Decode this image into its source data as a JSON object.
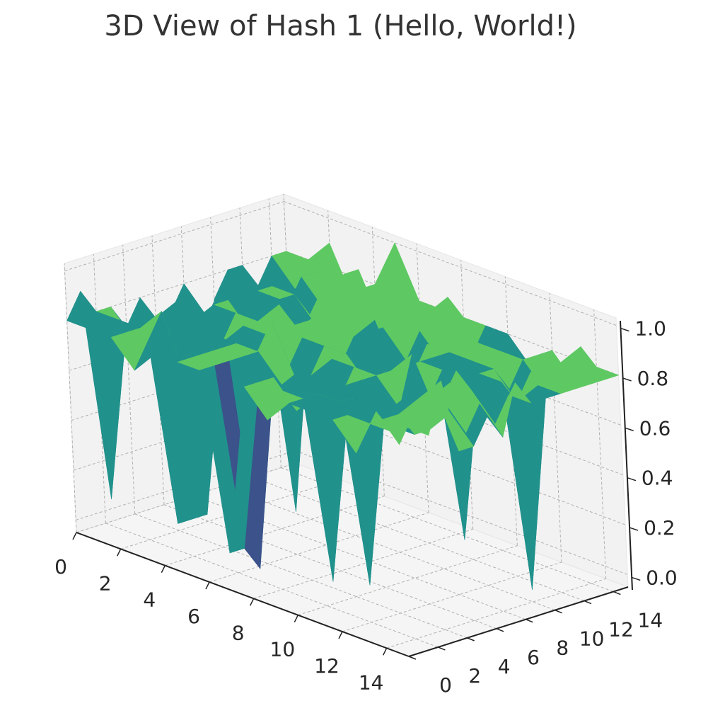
{
  "chart_data": {
    "type": "surface3d",
    "title": "3D View of Hash 1 (Hello, World!)",
    "xlabel": "",
    "ylabel": "",
    "zlabel": "",
    "x_ticks": [
      "0",
      "2",
      "4",
      "6",
      "8",
      "10",
      "12",
      "14"
    ],
    "y_ticks": [
      "0",
      "2",
      "4",
      "6",
      "8",
      "10",
      "12",
      "14"
    ],
    "z_ticks": [
      "0.0",
      "0.2",
      "0.4",
      "0.6",
      "0.8",
      "1.0"
    ],
    "xlim": [
      0,
      15
    ],
    "ylim": [
      0,
      15
    ],
    "zlim": [
      0,
      1
    ],
    "grid": true,
    "colormap": "viridis",
    "colors": {
      "level_0.0": "#3b528b",
      "level_0.3": "#3b528b",
      "level_0.67": "#21918c",
      "level_0.8": "#5ec962",
      "level_1.0": "#fde725"
    },
    "z": [
      [
        0.8,
        0.8,
        0.8,
        0.7,
        0.8,
        0.8,
        0.8,
        0.1,
        0.8,
        0.7,
        0.8,
        0.8,
        0.8,
        0.7,
        0.9,
        0.8
      ],
      [
        0.9,
        0.1,
        0.8,
        0.8,
        0.1,
        0.8,
        0.8,
        0.1,
        0.8,
        0.8,
        0.8,
        0.1,
        0.8,
        0.8,
        0.8,
        0.9
      ],
      [
        0.8,
        0.8,
        0.8,
        0.9,
        0.1,
        0.8,
        0.8,
        0.0,
        0.8,
        0.7,
        0.8,
        0.8,
        0.1,
        0.8,
        0.8,
        0.8
      ],
      [
        0.8,
        0.7,
        0.7,
        0.7,
        0.1,
        0.8,
        0.8,
        0.7,
        0.7,
        0.8,
        0.7,
        0.8,
        0.7,
        0.8,
        0.9,
        1.0
      ],
      [
        0.7,
        0.7,
        0.7,
        0.8,
        0.8,
        0.8,
        0.8,
        0.7,
        0.8,
        0.7,
        0.8,
        0.7,
        0.7,
        0.7,
        0.9,
        0.7
      ],
      [
        0.8,
        0.7,
        0.7,
        0.7,
        0.1,
        0.7,
        0.9,
        0.7,
        0.7,
        0.7,
        0.8,
        0.7,
        0.8,
        0.7,
        0.8,
        0.7
      ],
      [
        0.7,
        0.8,
        0.7,
        0.7,
        0.8,
        0.8,
        0.7,
        0.7,
        0.8,
        0.8,
        0.8,
        0.7,
        0.7,
        0.8,
        0.7,
        0.8
      ],
      [
        0.7,
        0.7,
        0.8,
        0.8,
        0.8,
        0.9,
        0.8,
        0.8,
        0.8,
        0.7,
        0.8,
        0.9,
        0.7,
        0.9,
        0.8,
        0.7
      ],
      [
        0.8,
        0.7,
        0.8,
        0.7,
        0.7,
        0.8,
        0.8,
        0.7,
        0.0,
        0.7,
        0.8,
        0.7,
        0.8,
        0.8,
        0.7,
        0.9
      ],
      [
        0.0,
        0.8,
        0.0,
        0.8,
        0.0,
        0.8,
        0.9,
        0.8,
        0.9,
        0.7,
        0.8,
        0.8,
        0.7,
        0.7,
        0.8,
        0.8
      ],
      [
        0.7,
        0.7,
        0.8,
        0.8,
        0.7,
        0.8,
        1.0,
        0.8,
        0.7,
        0.7,
        0.8,
        0.1,
        0.8,
        0.8,
        0.0,
        0.8
      ],
      [
        0.8,
        0.0,
        0.8,
        0.8,
        0.7,
        0.8,
        1.0,
        0.8,
        0.7,
        0.8,
        0.8,
        0.8,
        0.8,
        0.7,
        0.8,
        0.8
      ],
      [
        0.8,
        0.7,
        0.7,
        0.7,
        0.9,
        0.8,
        0.8,
        0.8,
        0.8,
        0.7,
        0.8,
        0.8,
        0.7,
        0.8,
        0.9,
        0.8
      ],
      [
        0.7,
        0.1,
        0.8,
        0.7,
        0.8,
        0.7,
        0.9,
        0.8,
        0.7,
        0.9,
        0.8,
        0.8,
        0.8,
        0.7,
        0.8,
        0.8
      ],
      [
        0.8,
        0.7,
        0.8,
        0.8,
        0.8,
        0.7,
        0.8,
        0.8,
        0.9,
        0.7,
        0.7,
        0.7,
        0.8,
        0.8,
        0.9,
        0.8
      ],
      [
        0.8,
        0.8,
        0.9,
        0.7,
        0.8,
        1.0,
        0.8,
        0.8,
        0.8,
        0.8,
        0.8,
        0.7,
        0.8,
        0.7,
        0.8,
        0.8
      ]
    ]
  }
}
